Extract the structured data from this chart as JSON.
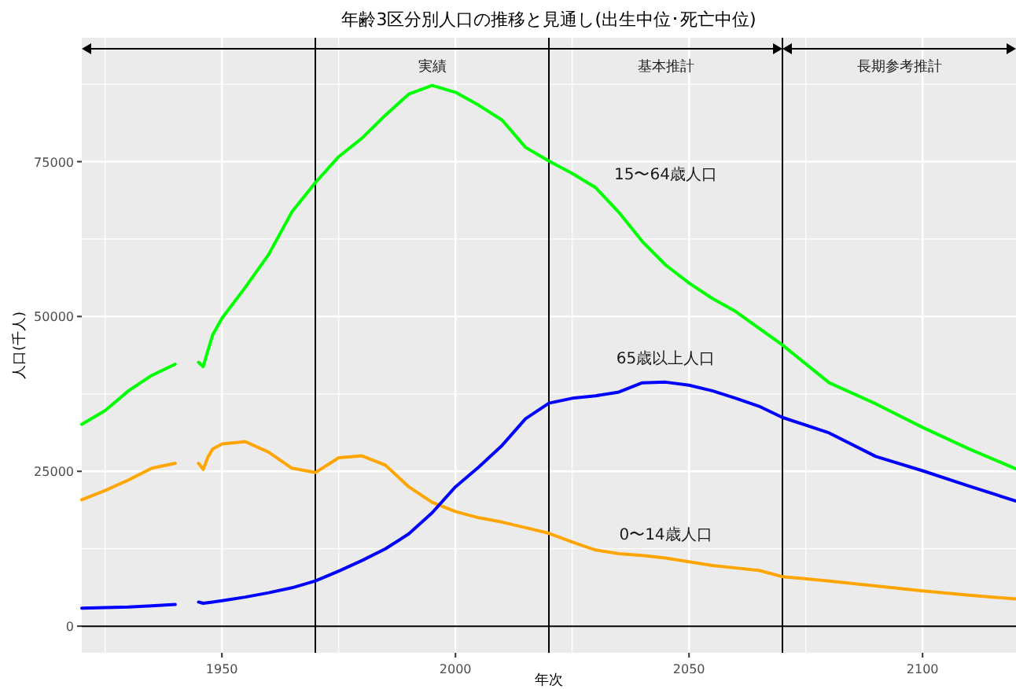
{
  "chart_data": {
    "type": "line",
    "title": "年齢3区分別人口の推移と見通し(出生中位･死亡中位)",
    "xlabel": "年次",
    "ylabel": "人口(千人)",
    "x": [
      1920,
      1925,
      1930,
      1935,
      1940,
      1942,
      1945,
      1946,
      1947,
      1948,
      1950,
      1955,
      1960,
      1965,
      1970,
      1975,
      1980,
      1985,
      1990,
      1995,
      2000,
      2005,
      2010,
      2015,
      2020,
      2025,
      2030,
      2035,
      2040,
      2045,
      2050,
      2055,
      2060,
      2065,
      2070,
      2080,
      2090,
      2100,
      2110,
      2120
    ],
    "series": [
      {
        "name": "15〜64歳人口",
        "color": "#00ff00",
        "values": [
          32600,
          34800,
          38000,
          40500,
          42300,
          null,
          42600,
          41900,
          44500,
          47000,
          49700,
          54700,
          60000,
          66900,
          71600,
          75800,
          78800,
          82500,
          85900,
          87300,
          86200,
          84100,
          81700,
          77300,
          75100,
          73100,
          70800,
          66800,
          62100,
          58300,
          55400,
          52900,
          50800,
          48100,
          45400,
          39300,
          35900,
          32100,
          28600,
          25400
        ]
      },
      {
        "name": "0〜14歳人口",
        "color": "#ffa500",
        "values": [
          20400,
          21900,
          23600,
          25500,
          26300,
          null,
          26300,
          25300,
          27300,
          28600,
          29400,
          29800,
          28100,
          25500,
          24800,
          27200,
          27500,
          26000,
          22500,
          20000,
          18500,
          17500,
          16800,
          15900,
          15000,
          13600,
          12300,
          11700,
          11400,
          11000,
          10400,
          9800,
          9400,
          9000,
          8000,
          7300,
          6500,
          5700,
          5000,
          4400
        ]
      },
      {
        "name": "65歳以上人口",
        "color": "#0000ff",
        "values": [
          2900,
          3000,
          3100,
          3300,
          3500,
          null,
          3900,
          3700,
          3800,
          3900,
          4100,
          4700,
          5400,
          6200,
          7300,
          8900,
          10600,
          12500,
          14900,
          18300,
          22500,
          25700,
          29200,
          33500,
          36000,
          36800,
          37200,
          37800,
          39300,
          39400,
          38900,
          38000,
          36800,
          35500,
          33700,
          31200,
          27400,
          25100,
          22600,
          20200
        ]
      }
    ],
    "xlim": [
      1920,
      2120
    ],
    "ylim": [
      -4300,
      95000
    ],
    "xticks": [
      1950,
      2000,
      2050,
      2100
    ],
    "yticks": [
      0,
      25000,
      50000,
      75000
    ],
    "grid": true,
    "ref_lines": [
      {
        "axis": "y",
        "value": 0,
        "color": "#000000"
      },
      {
        "axis": "x",
        "value": 1970,
        "color": "#000000"
      },
      {
        "axis": "x",
        "value": 2020,
        "color": "#000000"
      },
      {
        "axis": "x",
        "value": 2070,
        "color": "#000000"
      }
    ],
    "annotations": [
      "実績",
      "基本推計",
      "長期参考推計"
    ]
  }
}
